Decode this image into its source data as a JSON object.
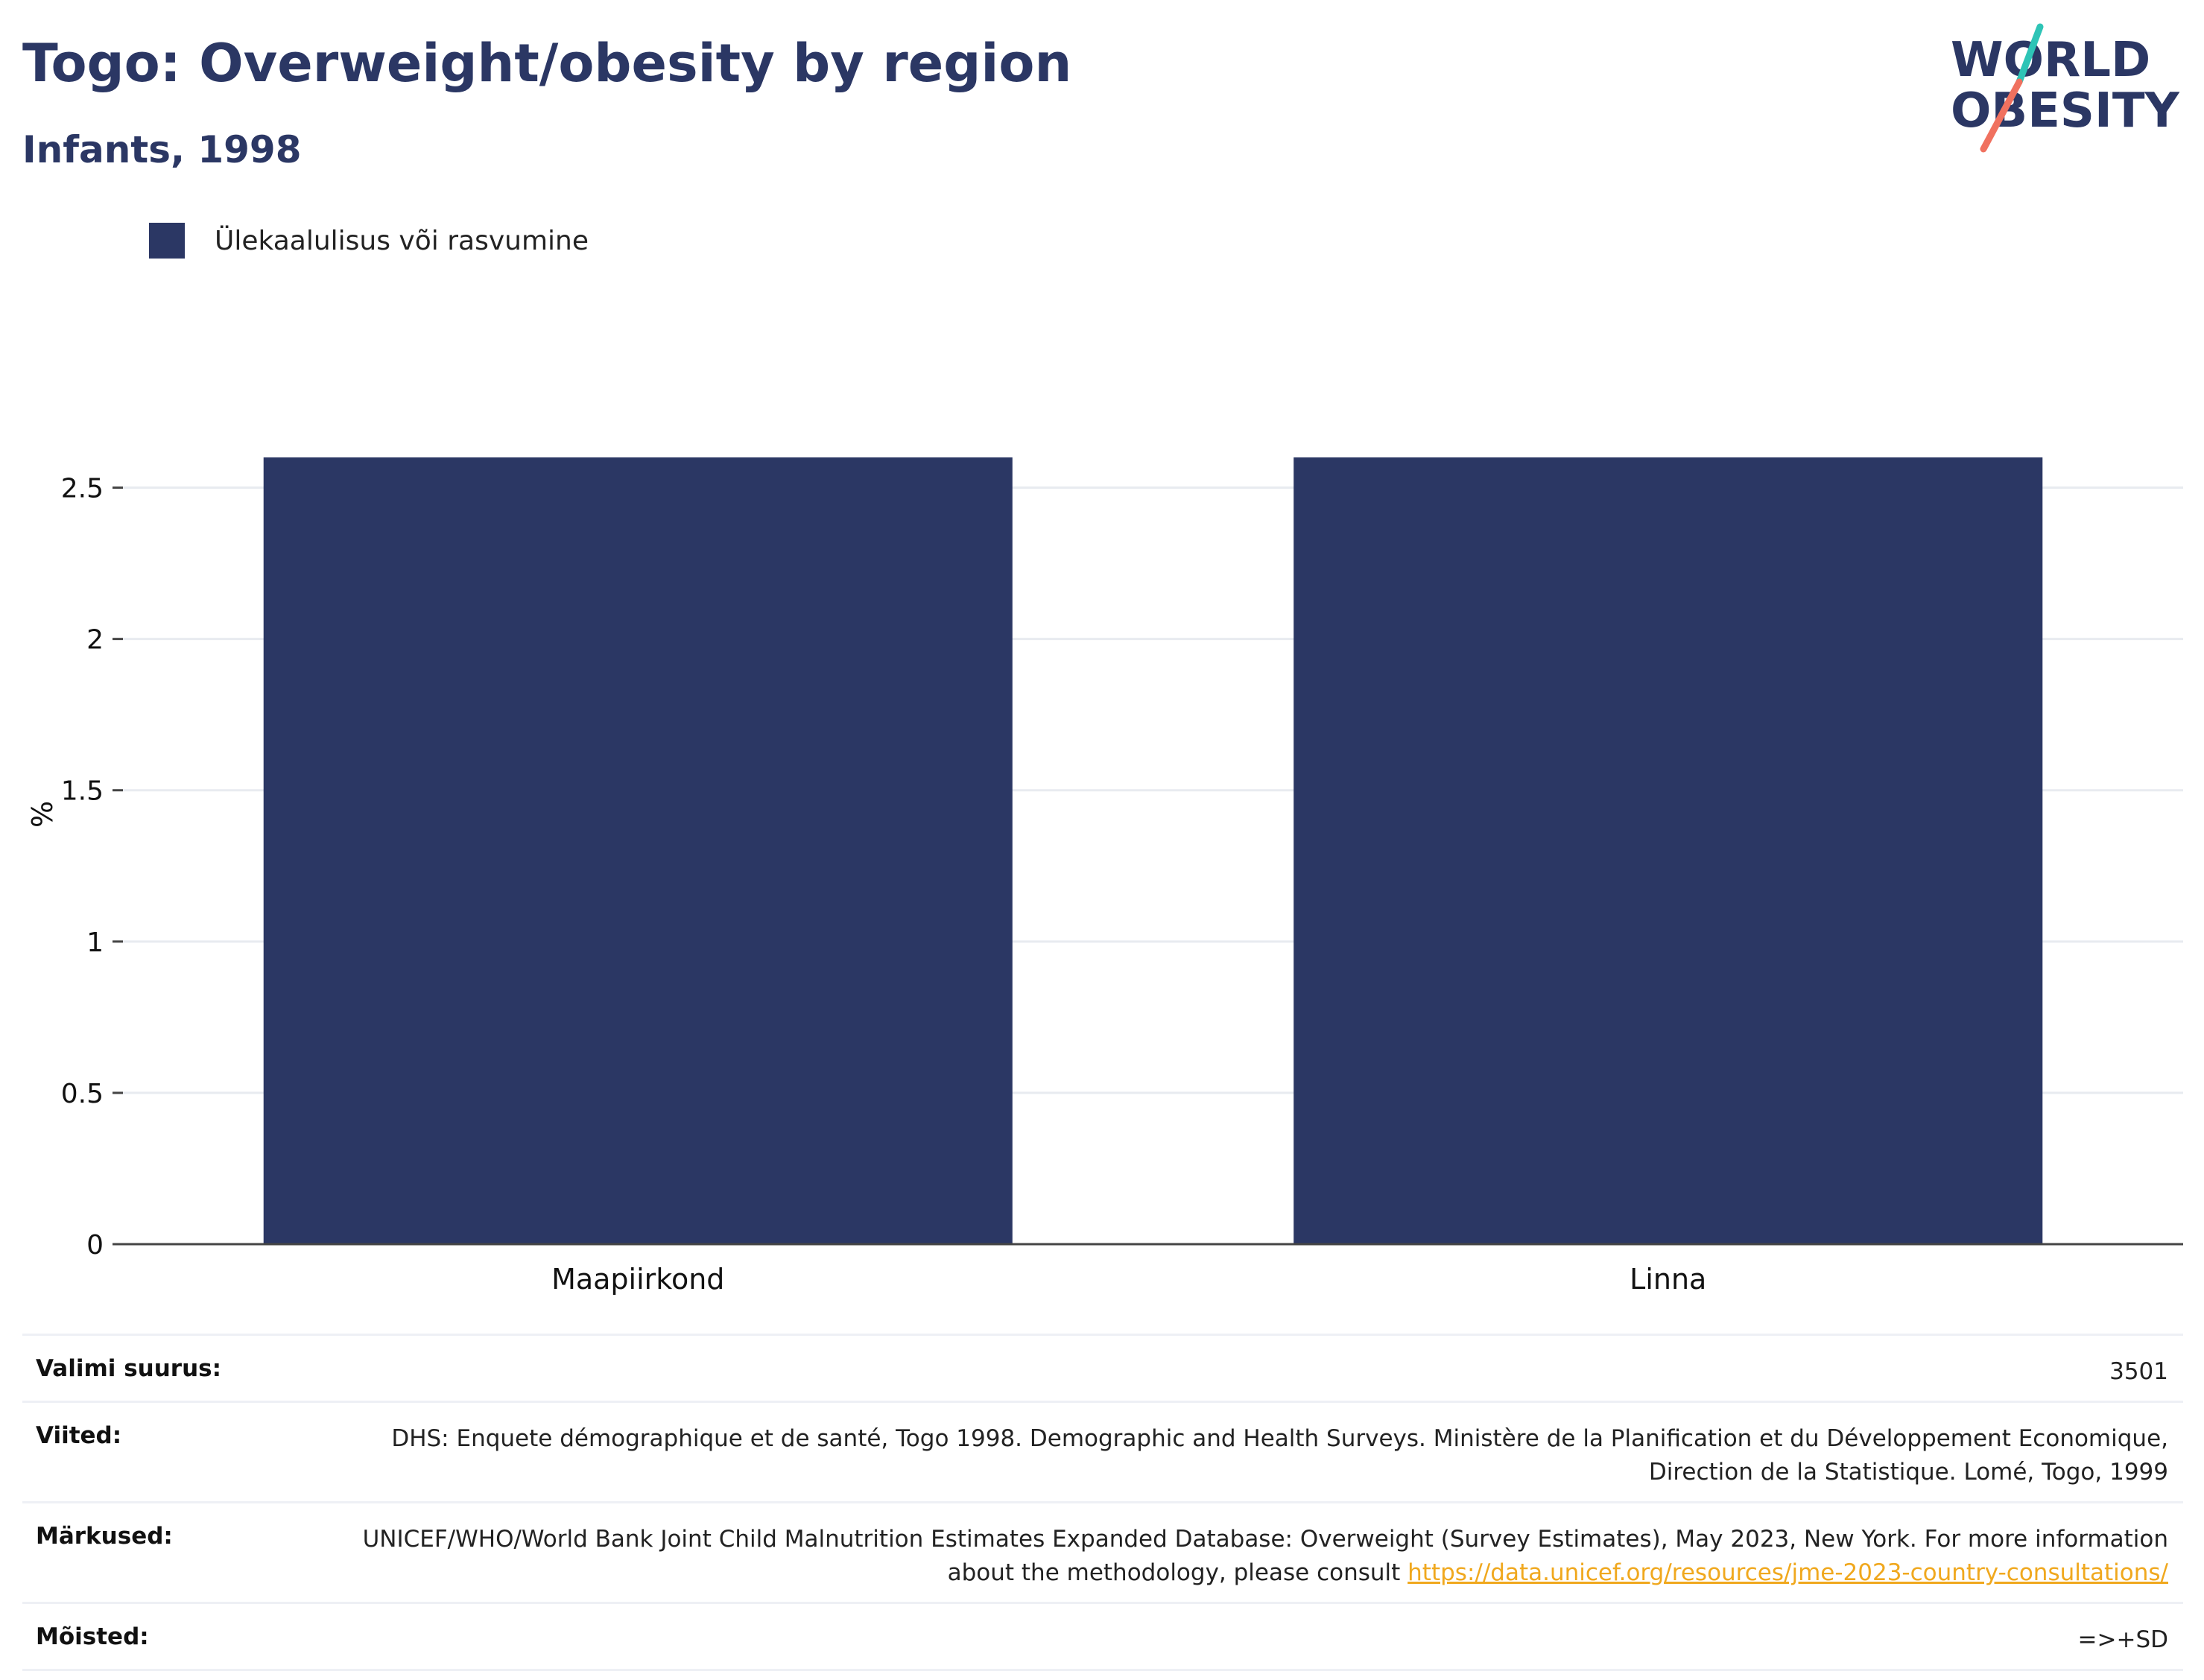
{
  "header": {
    "title": "Togo: Overweight/obesity by region",
    "subtitle": "Infants, 1998"
  },
  "logo": {
    "line1": "WORLD",
    "line2": "OBESITY",
    "colors": {
      "text": "#2b3764",
      "slash_top": "#2ec4b6",
      "slash_bottom": "#f0715f"
    }
  },
  "colors": {
    "bar": "#2b3764",
    "grid": "#e8ebf0",
    "axis": "#444444",
    "link": "#f0a81e"
  },
  "chart_data": {
    "type": "bar",
    "title": "Togo: Overweight/obesity by region",
    "subtitle": "Infants, 1998",
    "categories": [
      "Maapiirkond",
      "Linna"
    ],
    "series": [
      {
        "name": "Ülekaalulisus või rasvumine",
        "values": [
          2.6,
          2.6
        ]
      }
    ],
    "xlabel": "",
    "ylabel": "%",
    "ylim": [
      0,
      2.75
    ],
    "yticks": [
      0,
      0.5,
      1,
      1.5,
      2,
      2.5
    ],
    "ytick_labels": [
      "0",
      "0.5",
      "1",
      "1.5",
      "2",
      "2.5"
    ],
    "grid": true,
    "legend": "top-left"
  },
  "info": {
    "sample_label": "Valimi suurus:",
    "sample_value": "3501",
    "refs_label": "Viited:",
    "refs_value": "DHS: Enquete démographique et de santé, Togo 1998. Demographic and Health Surveys. Ministère de la Planification et du Développement Economique, Direction de la Statistique. Lomé, Togo, 1999",
    "notes_label": "Märkused:",
    "notes_value": "UNICEF/WHO/World Bank Joint Child Malnutrition Estimates Expanded Database: Overweight (Survey Estimates), May 2023, New York. For more information about the methodology, please consult",
    "notes_link": "https://data.unicef.org/resources/jme-2023-country-consultations/",
    "defs_label": "Mõisted:",
    "defs_value": "=>+SD"
  }
}
